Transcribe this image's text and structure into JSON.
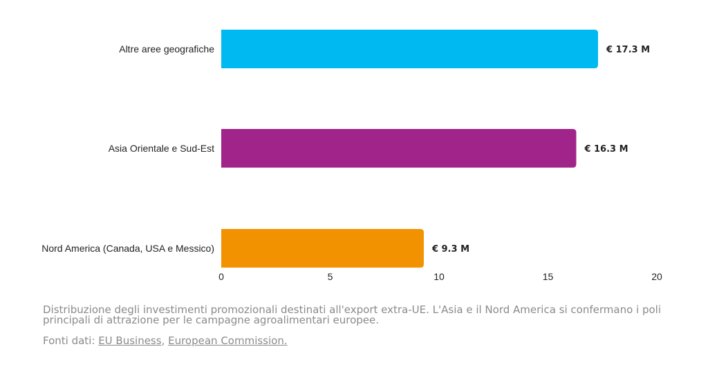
{
  "chart_data": {
    "type": "bar",
    "orientation": "horizontal",
    "categories": [
      "Altre aree geografiche",
      "Asia Orientale e Sud-Est",
      "Nord America (Canada, USA e Messico)"
    ],
    "values": [
      17.3,
      16.3,
      9.3
    ],
    "value_labels": [
      "€ 17.3 M",
      "€ 16.3 M",
      "€ 9.3 M"
    ],
    "colors": [
      "#00b9f1",
      "#a0248a",
      "#f39200"
    ],
    "xlim": [
      0,
      20
    ],
    "xticks": [
      0,
      5,
      10,
      15,
      20
    ],
    "grid": false
  },
  "caption": "Distribuzione degli investimenti promozionali destinati all'export extra-UE. L'Asia e il Nord America si confermano i poli principali di attrazione per le campagne agroalimentari europee.",
  "sources": {
    "prefix": "Fonti dati: ",
    "links": [
      "EU Business",
      "European Commission."
    ],
    "separator": ", "
  }
}
